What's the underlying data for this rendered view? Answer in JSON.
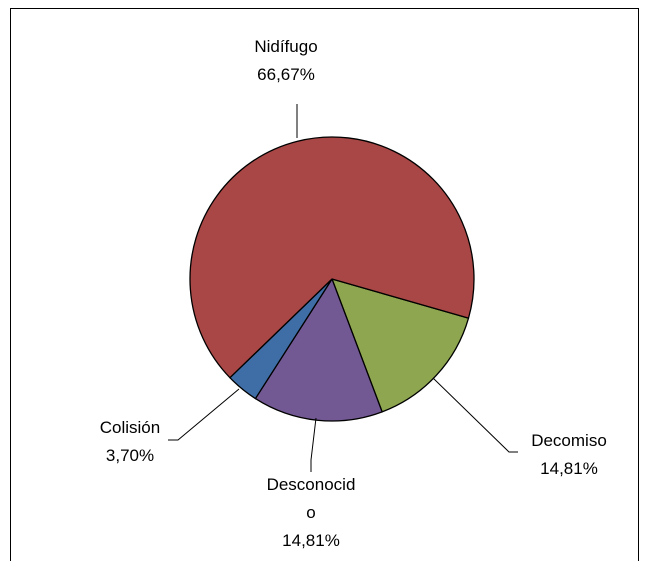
{
  "chart_data": {
    "type": "pie",
    "title": "",
    "slices": [
      {
        "label_lines": [
          "Nidífugo"
        ],
        "value_label": "66,67%",
        "value": 66.67,
        "color": "#a84745"
      },
      {
        "label_lines": [
          "Decomiso"
        ],
        "value_label": "14,81%",
        "value": 14.81,
        "color": "#8ea64f"
      },
      {
        "label_lines": [
          "Desconocid",
          "o"
        ],
        "value_label": "14,81%",
        "value": 14.81,
        "color": "#735993"
      },
      {
        "label_lines": [
          "Colisión"
        ],
        "value_label": "3,70%",
        "value": 3.7,
        "color": "#3f6ea7"
      }
    ],
    "legend": "none",
    "labels": "outside-with-leader-lines"
  }
}
